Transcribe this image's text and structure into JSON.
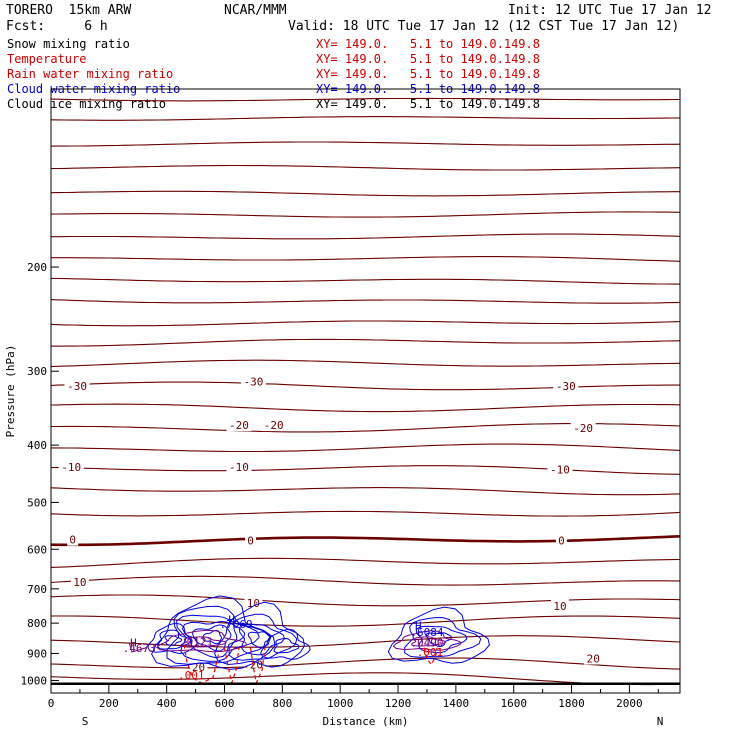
{
  "header": {
    "model": "TORERO  15km ARW",
    "org": "NCAR/MMM",
    "init": "Init: 12 UTC Tue 17 Jan 12",
    "fcst": "Fcst:     6 h",
    "valid": "Valid: 18 UTC Tue 17 Jan 12 (12 CST Tue 17 Jan 12)"
  },
  "legend": [
    {
      "name": "Snow mixing ratio",
      "xy": "XY= 149.0.   5.1 to 149.0.149.8",
      "color": "#000000"
    },
    {
      "name": "Temperature",
      "xy": "XY= 149.0.   5.1 to 149.0.149.8",
      "color": "#cc0000"
    },
    {
      "name": "Rain water mixing ratio",
      "xy": "XY= 149.0.   5.1 to 149.0.149.8",
      "color": "#cc0000"
    },
    {
      "name": "Cloud water mixing ratio",
      "xy": "XY= 149.0.   5.1 to 149.0.149.8",
      "color": "#0000cc"
    },
    {
      "name": "Cloud ice mixing ratio",
      "xy": "XY= 149.0.   5.1 to 149.0.149.8",
      "color": "#000000"
    }
  ],
  "colors": {
    "temperature": "#6b0000",
    "rain": "#ee0000",
    "cloud_water": "#0000dd",
    "cloud_ice": "#7a0080"
  },
  "chart_data": {
    "type": "line",
    "xlabel": "Distance (km)",
    "ylabel": "Pressure (hPa)",
    "xlim": [
      0,
      2175
    ],
    "ylim": [
      1050,
      100
    ],
    "y_scale": "log",
    "x_ticks": [
      0,
      200,
      400,
      600,
      800,
      1000,
      1200,
      1400,
      1600,
      1800,
      2000
    ],
    "y_ticks": [
      200,
      300,
      400,
      500,
      600,
      700,
      800,
      900,
      1000
    ],
    "left_end": "S",
    "right_end": "N",
    "terrain_pressure": 1013,
    "temperature_isotherms": [
      {
        "pressure": 104
      },
      {
        "pressure": 112
      },
      {
        "pressure": 124
      },
      {
        "pressure": 136
      },
      {
        "pressure": 150
      },
      {
        "pressure": 163
      },
      {
        "pressure": 178
      },
      {
        "pressure": 194
      },
      {
        "pressure": 211
      },
      {
        "pressure": 228
      },
      {
        "pressure": 248
      },
      {
        "pressure": 268
      },
      {
        "pressure": 292
      },
      {
        "pressure": 318
      },
      {
        "pressure": 345
      },
      {
        "pressure": 374
      },
      {
        "pressure": 406
      },
      {
        "pressure": 440
      },
      {
        "pressure": 476
      },
      {
        "pressure": 520
      },
      {
        "pressure": 578
      },
      {
        "pressure": 632
      },
      {
        "pressure": 682
      },
      {
        "pressure": 733
      },
      {
        "pressure": 790
      },
      {
        "pressure": 860
      },
      {
        "pressure": 940
      },
      {
        "pressure": 990
      }
    ],
    "isotherm_labels": [
      {
        "text": "-30",
        "x": 90,
        "p": 318
      },
      {
        "text": "-30",
        "x": 700,
        "p": 312
      },
      {
        "text": "-30",
        "x": 1780,
        "p": 318
      },
      {
        "text": "-20",
        "x": 650,
        "p": 370
      },
      {
        "text": "-20",
        "x": 770,
        "p": 370
      },
      {
        "text": "-20",
        "x": 1840,
        "p": 374
      },
      {
        "text": "-10",
        "x": 70,
        "p": 436
      },
      {
        "text": "-10",
        "x": 650,
        "p": 436
      },
      {
        "text": "-10",
        "x": 1760,
        "p": 440
      },
      {
        "text": "0",
        "x": 75,
        "p": 578
      },
      {
        "text": "0",
        "x": 690,
        "p": 580
      },
      {
        "text": "0",
        "x": 1765,
        "p": 580
      },
      {
        "text": "10",
        "x": 100,
        "p": 682
      },
      {
        "text": "10",
        "x": 700,
        "p": 740
      },
      {
        "text": "10",
        "x": 1760,
        "p": 748
      },
      {
        "text": "20",
        "x": 510,
        "p": 948
      },
      {
        "text": "20",
        "x": 710,
        "p": 940
      },
      {
        "text": "20",
        "x": 1875,
        "p": 918
      }
    ],
    "cloud_labels": [
      {
        "text": "H",
        "x": 625,
        "p": 788,
        "color": "#0000dd"
      },
      {
        "text": ".7069",
        "x": 640,
        "p": 803,
        "color": "#0000dd"
      },
      {
        "text": "H",
        "x": 285,
        "p": 862,
        "color": "#7a0080"
      },
      {
        "text": "0121",
        "x": 515,
        "p": 860,
        "color": "#7a0080"
      },
      {
        "text": ".4673",
        "x": 305,
        "p": 882,
        "color": "#7a0080"
      },
      {
        "text": "H",
        "x": 1270,
        "p": 808,
        "color": "#0000dd"
      },
      {
        "text": ".6084",
        "x": 1300,
        "p": 828,
        "color": "#0000dd"
      },
      {
        "text": ".0490",
        "x": 1300,
        "p": 862,
        "color": "#7a0080"
      },
      {
        "text": ".001",
        "x": 1310,
        "p": 895,
        "color": "#ee0000"
      },
      {
        "text": ".001",
        "x": 485,
        "p": 978,
        "color": "#ee0000"
      }
    ]
  }
}
